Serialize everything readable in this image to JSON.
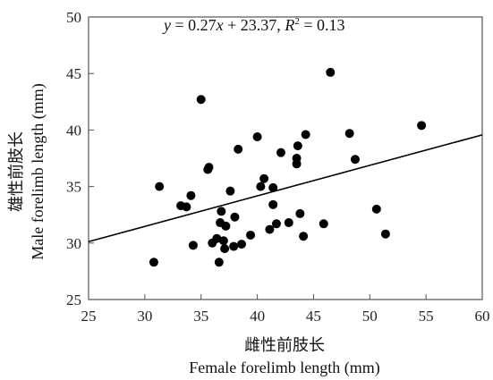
{
  "chart_data": {
    "type": "scatter",
    "title": "",
    "annotation": {
      "y_var": "y",
      "equals": " = ",
      "slope": "0.27",
      "x_var": "x",
      "intercept": " + 23.37, ",
      "r2_var": "R",
      "r2_sup": "2",
      "r2_value": " = 0.13"
    },
    "xlabel_cn": "雌性前肢长",
    "xlabel": "Female forelimb length (mm)",
    "ylabel_cn": "雄性前肢长",
    "ylabel": "Male forelimb length (mm)",
    "xlim": [
      25,
      60
    ],
    "ylim": [
      25,
      50
    ],
    "xticks": [
      25,
      30,
      35,
      40,
      45,
      50,
      55,
      60
    ],
    "yticks": [
      25,
      30,
      35,
      40,
      45,
      50
    ],
    "regression": {
      "slope": 0.27,
      "intercept": 23.37,
      "r2": 0.13
    },
    "grid": false,
    "marker_color": "#000000",
    "points": [
      [
        30.8,
        28.3
      ],
      [
        31.3,
        35.0
      ],
      [
        33.2,
        33.3
      ],
      [
        33.7,
        33.2
      ],
      [
        34.1,
        34.2
      ],
      [
        34.3,
        29.8
      ],
      [
        35.0,
        42.7
      ],
      [
        35.6,
        36.5
      ],
      [
        35.7,
        36.7
      ],
      [
        36.0,
        30.0
      ],
      [
        36.4,
        30.4
      ],
      [
        36.6,
        28.3
      ],
      [
        36.7,
        31.8
      ],
      [
        36.8,
        32.8
      ],
      [
        37.0,
        30.2
      ],
      [
        37.1,
        29.5
      ],
      [
        37.2,
        31.5
      ],
      [
        37.6,
        34.6
      ],
      [
        37.9,
        29.7
      ],
      [
        38.0,
        32.3
      ],
      [
        38.3,
        38.3
      ],
      [
        38.6,
        29.9
      ],
      [
        39.4,
        30.7
      ],
      [
        40.0,
        39.4
      ],
      [
        40.3,
        35.0
      ],
      [
        40.6,
        35.7
      ],
      [
        41.1,
        31.2
      ],
      [
        41.4,
        34.9
      ],
      [
        41.4,
        33.4
      ],
      [
        41.7,
        31.7
      ],
      [
        42.1,
        38.0
      ],
      [
        42.8,
        31.8
      ],
      [
        43.5,
        37.5
      ],
      [
        43.5,
        37.0
      ],
      [
        43.6,
        38.6
      ],
      [
        43.8,
        32.6
      ],
      [
        44.1,
        30.6
      ],
      [
        44.3,
        39.6
      ],
      [
        45.9,
        31.7
      ],
      [
        46.5,
        45.1
      ],
      [
        48.2,
        39.7
      ],
      [
        48.7,
        37.4
      ],
      [
        50.6,
        33.0
      ],
      [
        51.4,
        30.8
      ],
      [
        54.6,
        40.4
      ]
    ]
  }
}
